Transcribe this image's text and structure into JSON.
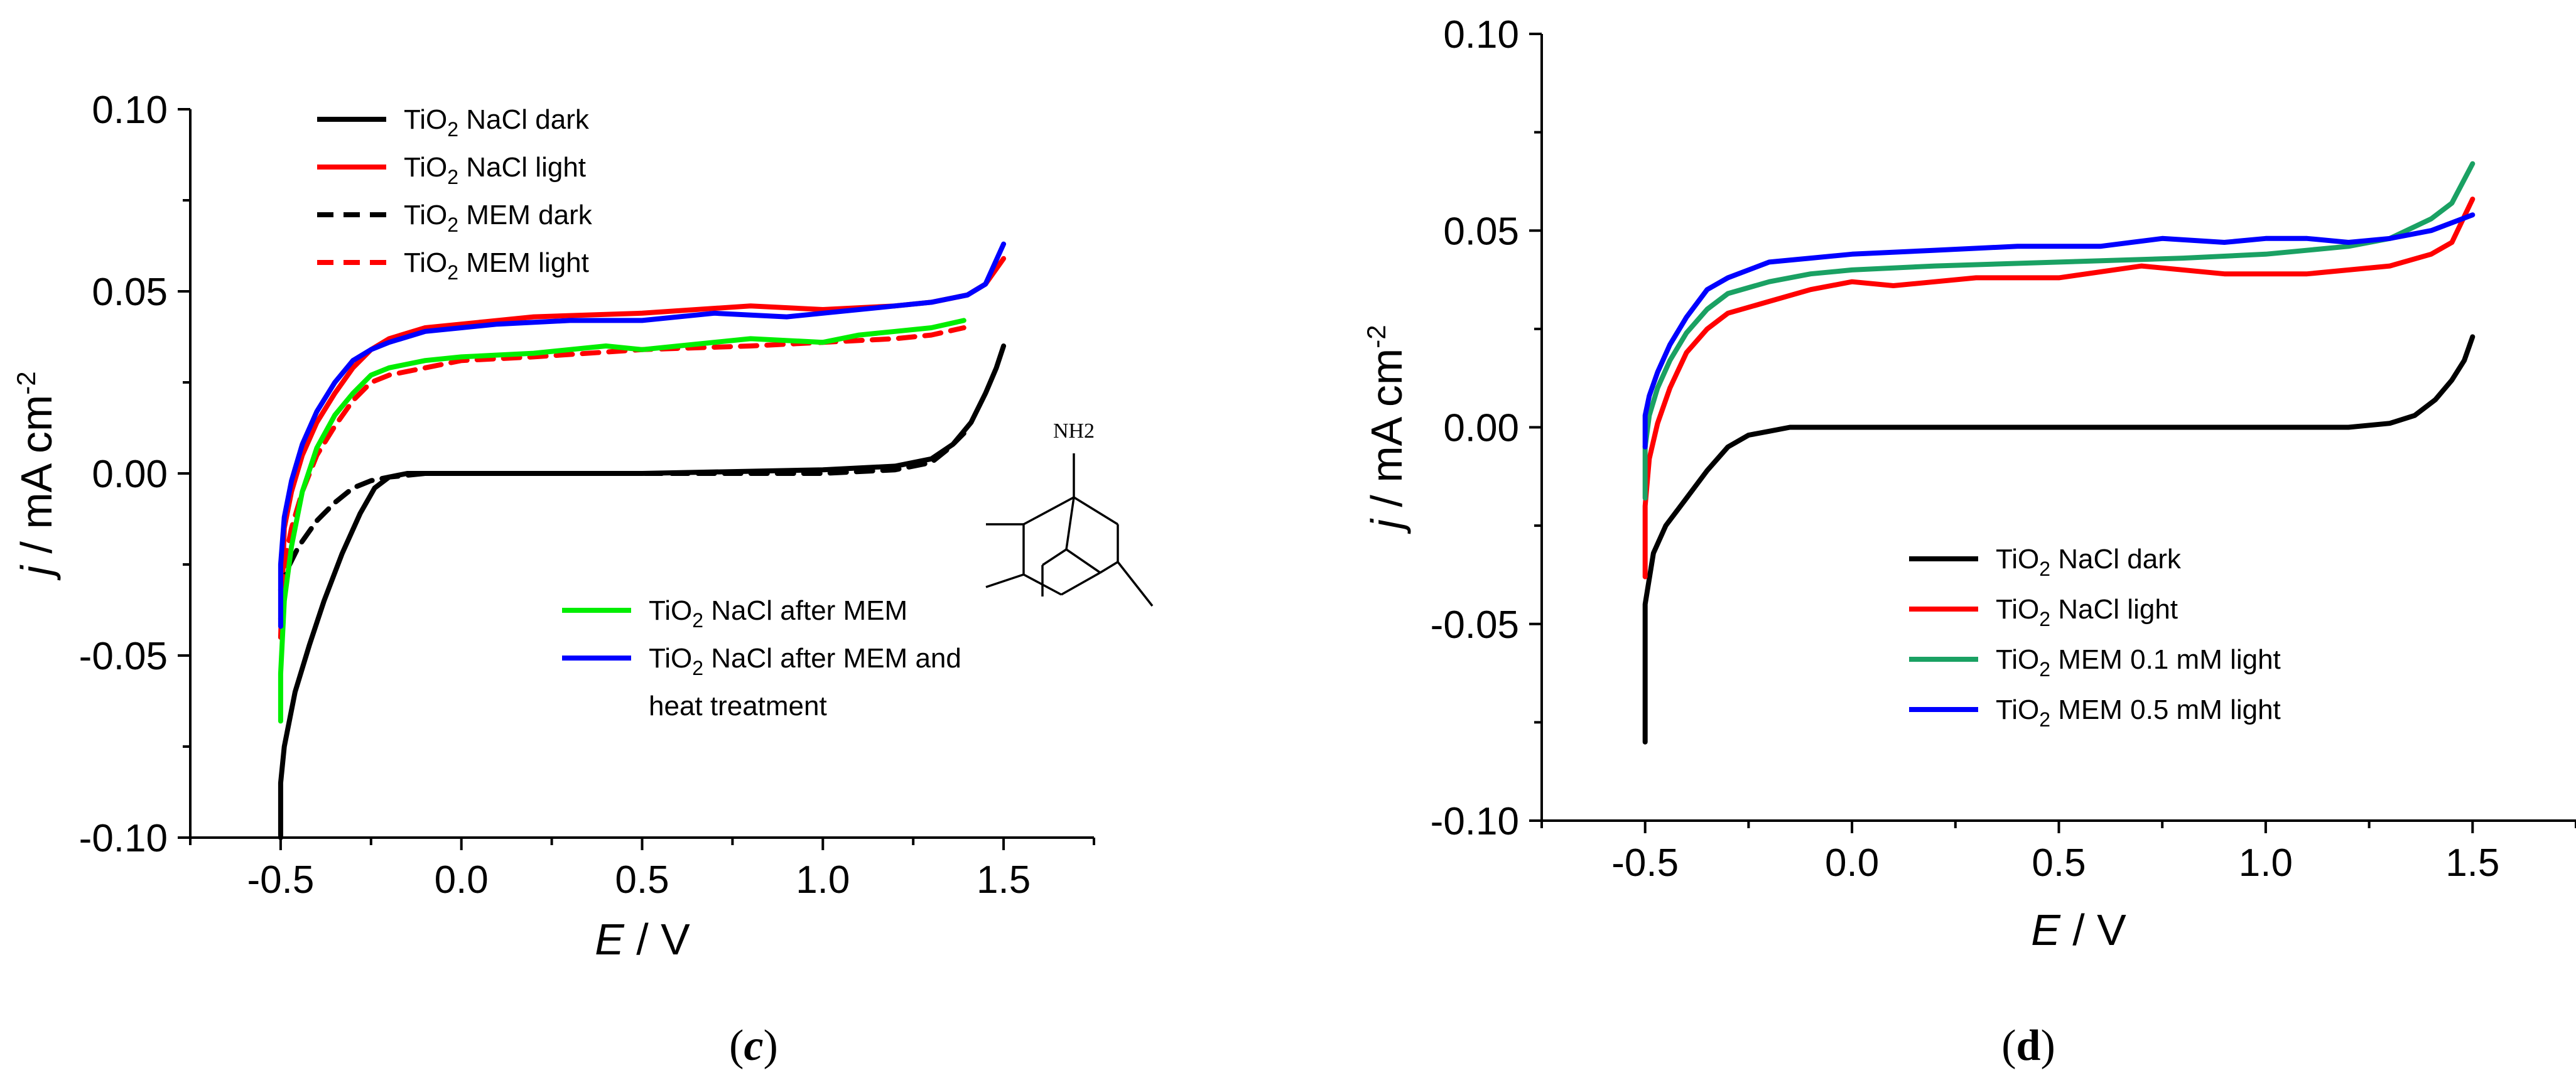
{
  "figure": {
    "panel_labels": {
      "c": "(c)",
      "d": "(d)"
    }
  },
  "chart_data": [
    {
      "id": "c",
      "type": "line",
      "panel_label": "(c)",
      "xlabel": {
        "italic": "E",
        "rest": " / V"
      },
      "ylabel": {
        "italic": "j",
        "rest": " / mA cm",
        "sup": "-2"
      },
      "xlim": [
        -0.75,
        1.75
      ],
      "ylim": [
        -0.1,
        0.1
      ],
      "xticks": [
        -0.5,
        0.0,
        0.5,
        1.0,
        1.5
      ],
      "xtick_labels": [
        "-0.5",
        "0.0",
        "0.5",
        "1.0",
        "1.5"
      ],
      "yticks": [
        -0.1,
        -0.05,
        0.0,
        0.05,
        0.1
      ],
      "ytick_labels": [
        "-0.10",
        "-0.05",
        "0.00",
        "0.05",
        "0.10"
      ],
      "legends": [
        {
          "position": "top-left",
          "entries": [
            0,
            1,
            2,
            3
          ]
        },
        {
          "position": "bottom-right",
          "entries": [
            4,
            5
          ]
        }
      ],
      "structure_label": "NH2",
      "series": [
        {
          "name": "TiO2 NaCl dark",
          "label_main": "TiO",
          "label_sub": "2",
          "label_rest": " NaCl dark",
          "color": "#000000",
          "dash": "solid",
          "points": [
            [
              -0.5,
              -0.1
            ],
            [
              -0.5,
              -0.085
            ],
            [
              -0.49,
              -0.075
            ],
            [
              -0.46,
              -0.06
            ],
            [
              -0.42,
              -0.047
            ],
            [
              -0.38,
              -0.035
            ],
            [
              -0.33,
              -0.022
            ],
            [
              -0.28,
              -0.011
            ],
            [
              -0.24,
              -0.004
            ],
            [
              -0.2,
              -0.001
            ],
            [
              -0.15,
              0.0
            ],
            [
              0.0,
              0.0
            ],
            [
              0.5,
              0.0
            ],
            [
              1.0,
              0.001
            ],
            [
              1.2,
              0.002
            ],
            [
              1.3,
              0.004
            ],
            [
              1.36,
              0.008
            ],
            [
              1.41,
              0.014
            ],
            [
              1.45,
              0.022
            ],
            [
              1.48,
              0.029
            ],
            [
              1.5,
              0.035
            ]
          ]
        },
        {
          "name": "TiO2 NaCl light",
          "label_main": "TiO",
          "label_sub": "2",
          "label_rest": " NaCl light",
          "color": "#ff0000",
          "dash": "solid",
          "points": [
            [
              -0.5,
              -0.045
            ],
            [
              -0.49,
              -0.015
            ],
            [
              -0.47,
              -0.005
            ],
            [
              -0.44,
              0.005
            ],
            [
              -0.4,
              0.014
            ],
            [
              -0.35,
              0.022
            ],
            [
              -0.3,
              0.029
            ],
            [
              -0.25,
              0.034
            ],
            [
              -0.2,
              0.037
            ],
            [
              -0.1,
              0.04
            ],
            [
              0.0,
              0.041
            ],
            [
              0.2,
              0.043
            ],
            [
              0.5,
              0.044
            ],
            [
              0.8,
              0.046
            ],
            [
              1.0,
              0.045
            ],
            [
              1.2,
              0.046
            ],
            [
              1.3,
              0.047
            ],
            [
              1.4,
              0.049
            ],
            [
              1.45,
              0.052
            ],
            [
              1.5,
              0.059
            ]
          ]
        },
        {
          "name": "TiO2 MEM dark",
          "label_main": "TiO",
          "label_sub": "2",
          "label_rest": " MEM dark",
          "color": "#000000",
          "dash": "dashed",
          "points": [
            [
              -0.5,
              -0.032
            ],
            [
              -0.48,
              -0.026
            ],
            [
              -0.45,
              -0.02
            ],
            [
              -0.4,
              -0.013
            ],
            [
              -0.35,
              -0.008
            ],
            [
              -0.3,
              -0.004
            ],
            [
              -0.25,
              -0.002
            ],
            [
              -0.2,
              -0.001
            ],
            [
              -0.1,
              0.0
            ],
            [
              0.5,
              0.0
            ],
            [
              1.0,
              0.0
            ],
            [
              1.2,
              0.001
            ],
            [
              1.3,
              0.003
            ],
            [
              1.35,
              0.007
            ],
            [
              1.39,
              0.011
            ]
          ]
        },
        {
          "name": "TiO2 MEM light",
          "label_main": "TiO",
          "label_sub": "2",
          "label_rest": " MEM light",
          "color": "#ff0000",
          "dash": "dashed",
          "points": [
            [
              -0.5,
              -0.04
            ],
            [
              -0.49,
              -0.025
            ],
            [
              -0.47,
              -0.015
            ],
            [
              -0.44,
              -0.005
            ],
            [
              -0.4,
              0.005
            ],
            [
              -0.35,
              0.013
            ],
            [
              -0.3,
              0.02
            ],
            [
              -0.25,
              0.025
            ],
            [
              -0.2,
              0.027
            ],
            [
              -0.1,
              0.029
            ],
            [
              0.0,
              0.031
            ],
            [
              0.2,
              0.032
            ],
            [
              0.5,
              0.034
            ],
            [
              0.8,
              0.035
            ],
            [
              1.0,
              0.036
            ],
            [
              1.2,
              0.037
            ],
            [
              1.3,
              0.038
            ],
            [
              1.39,
              0.04
            ]
          ]
        },
        {
          "name": "TiO2 NaCl after MEM",
          "label_main": "TiO",
          "label_sub": "2",
          "label_rest": " NaCl after MEM",
          "color": "#00ee00",
          "dash": "solid",
          "points": [
            [
              -0.5,
              -0.068
            ],
            [
              -0.5,
              -0.055
            ],
            [
              -0.49,
              -0.035
            ],
            [
              -0.47,
              -0.02
            ],
            [
              -0.44,
              -0.005
            ],
            [
              -0.4,
              0.007
            ],
            [
              -0.35,
              0.016
            ],
            [
              -0.3,
              0.022
            ],
            [
              -0.25,
              0.027
            ],
            [
              -0.2,
              0.029
            ],
            [
              -0.1,
              0.031
            ],
            [
              0.0,
              0.032
            ],
            [
              0.2,
              0.033
            ],
            [
              0.4,
              0.035
            ],
            [
              0.5,
              0.034
            ],
            [
              0.6,
              0.035
            ],
            [
              0.8,
              0.037
            ],
            [
              1.0,
              0.036
            ],
            [
              1.1,
              0.038
            ],
            [
              1.2,
              0.039
            ],
            [
              1.3,
              0.04
            ],
            [
              1.39,
              0.042
            ]
          ]
        },
        {
          "name": "TiO2 NaCl after MEM and heat treatment",
          "label_main": "TiO",
          "label_sub": "2",
          "label_rest": " NaCl after MEM and",
          "label_line2": "heat treatment",
          "color": "#0000ff",
          "dash": "solid",
          "points": [
            [
              -0.5,
              -0.042
            ],
            [
              -0.5,
              -0.025
            ],
            [
              -0.49,
              -0.012
            ],
            [
              -0.47,
              -0.002
            ],
            [
              -0.44,
              0.008
            ],
            [
              -0.4,
              0.017
            ],
            [
              -0.35,
              0.025
            ],
            [
              -0.3,
              0.031
            ],
            [
              -0.25,
              0.034
            ],
            [
              -0.2,
              0.036
            ],
            [
              -0.1,
              0.039
            ],
            [
              0.0,
              0.04
            ],
            [
              0.1,
              0.041
            ],
            [
              0.3,
              0.042
            ],
            [
              0.5,
              0.042
            ],
            [
              0.7,
              0.044
            ],
            [
              0.9,
              0.043
            ],
            [
              1.0,
              0.044
            ],
            [
              1.2,
              0.046
            ],
            [
              1.3,
              0.047
            ],
            [
              1.4,
              0.049
            ],
            [
              1.45,
              0.052
            ],
            [
              1.5,
              0.063
            ]
          ]
        }
      ]
    },
    {
      "id": "d",
      "type": "line",
      "panel_label": "(d)",
      "xlabel": {
        "italic": "E",
        "rest": " / V"
      },
      "ylabel": {
        "italic": "j",
        "rest": " / mA cm",
        "sup": "-2"
      },
      "xlim": [
        -0.75,
        1.75
      ],
      "ylim": [
        -0.1,
        0.1
      ],
      "xticks": [
        -0.5,
        0.0,
        0.5,
        1.0,
        1.5
      ],
      "xtick_labels": [
        "-0.5",
        "0.0",
        "0.5",
        "1.0",
        "1.5"
      ],
      "yticks": [
        -0.1,
        -0.05,
        0.0,
        0.05,
        0.1
      ],
      "ytick_labels": [
        "-0.10",
        "-0.05",
        "0.00",
        "0.05",
        "0.10"
      ],
      "legends": [
        {
          "position": "bottom-center",
          "entries": [
            0,
            1,
            2,
            3
          ]
        }
      ],
      "series": [
        {
          "name": "TiO2 NaCl dark",
          "label_main": "TiO",
          "label_sub": "2",
          "label_rest": " NaCl dark",
          "color": "#000000",
          "dash": "solid",
          "points": [
            [
              -0.5,
              -0.08
            ],
            [
              -0.5,
              -0.045
            ],
            [
              -0.48,
              -0.032
            ],
            [
              -0.45,
              -0.025
            ],
            [
              -0.4,
              -0.018
            ],
            [
              -0.35,
              -0.011
            ],
            [
              -0.3,
              -0.005
            ],
            [
              -0.25,
              -0.002
            ],
            [
              -0.2,
              -0.001
            ],
            [
              -0.15,
              0.0
            ],
            [
              0.5,
              0.0
            ],
            [
              1.0,
              0.0
            ],
            [
              1.2,
              0.0
            ],
            [
              1.3,
              0.001
            ],
            [
              1.36,
              0.003
            ],
            [
              1.41,
              0.007
            ],
            [
              1.45,
              0.012
            ],
            [
              1.48,
              0.017
            ],
            [
              1.5,
              0.023
            ]
          ]
        },
        {
          "name": "TiO2 NaCl light",
          "label_main": "TiO",
          "label_sub": "2",
          "label_rest": " NaCl light",
          "color": "#ff0000",
          "dash": "solid",
          "points": [
            [
              -0.5,
              -0.038
            ],
            [
              -0.5,
              -0.02
            ],
            [
              -0.49,
              -0.008
            ],
            [
              -0.47,
              0.001
            ],
            [
              -0.44,
              0.01
            ],
            [
              -0.4,
              0.019
            ],
            [
              -0.35,
              0.025
            ],
            [
              -0.3,
              0.029
            ],
            [
              -0.2,
              0.032
            ],
            [
              -0.1,
              0.035
            ],
            [
              0.0,
              0.037
            ],
            [
              0.1,
              0.036
            ],
            [
              0.3,
              0.038
            ],
            [
              0.5,
              0.038
            ],
            [
              0.7,
              0.041
            ],
            [
              0.9,
              0.039
            ],
            [
              1.1,
              0.039
            ],
            [
              1.3,
              0.041
            ],
            [
              1.4,
              0.044
            ],
            [
              1.45,
              0.047
            ],
            [
              1.5,
              0.058
            ]
          ]
        },
        {
          "name": "TiO2 MEM 0.1 mM light",
          "label_main": "TiO",
          "label_sub": "2",
          "label_rest": " MEM 0.1 mM light",
          "color": "#1aa163",
          "dash": "solid",
          "points": [
            [
              -0.5,
              -0.018
            ],
            [
              -0.5,
              -0.005
            ],
            [
              -0.49,
              0.003
            ],
            [
              -0.47,
              0.01
            ],
            [
              -0.44,
              0.017
            ],
            [
              -0.4,
              0.024
            ],
            [
              -0.35,
              0.03
            ],
            [
              -0.3,
              0.034
            ],
            [
              -0.2,
              0.037
            ],
            [
              -0.1,
              0.039
            ],
            [
              0.0,
              0.04
            ],
            [
              0.2,
              0.041
            ],
            [
              0.5,
              0.042
            ],
            [
              0.8,
              0.043
            ],
            [
              1.0,
              0.044
            ],
            [
              1.2,
              0.046
            ],
            [
              1.3,
              0.048
            ],
            [
              1.4,
              0.053
            ],
            [
              1.45,
              0.057
            ],
            [
              1.5,
              0.067
            ]
          ]
        },
        {
          "name": "TiO2 MEM 0.5 mM light",
          "label_main": "TiO",
          "label_sub": "2",
          "label_rest": " MEM 0.5 mM light",
          "color": "#0000ff",
          "dash": "solid",
          "points": [
            [
              -0.5,
              -0.005
            ],
            [
              -0.5,
              0.003
            ],
            [
              -0.49,
              0.008
            ],
            [
              -0.47,
              0.014
            ],
            [
              -0.44,
              0.021
            ],
            [
              -0.4,
              0.028
            ],
            [
              -0.35,
              0.035
            ],
            [
              -0.3,
              0.038
            ],
            [
              -0.2,
              0.042
            ],
            [
              -0.1,
              0.043
            ],
            [
              0.0,
              0.044
            ],
            [
              0.2,
              0.045
            ],
            [
              0.4,
              0.046
            ],
            [
              0.6,
              0.046
            ],
            [
              0.75,
              0.048
            ],
            [
              0.9,
              0.047
            ],
            [
              1.0,
              0.048
            ],
            [
              1.1,
              0.048
            ],
            [
              1.2,
              0.047
            ],
            [
              1.3,
              0.048
            ],
            [
              1.4,
              0.05
            ],
            [
              1.5,
              0.054
            ]
          ]
        }
      ]
    }
  ]
}
